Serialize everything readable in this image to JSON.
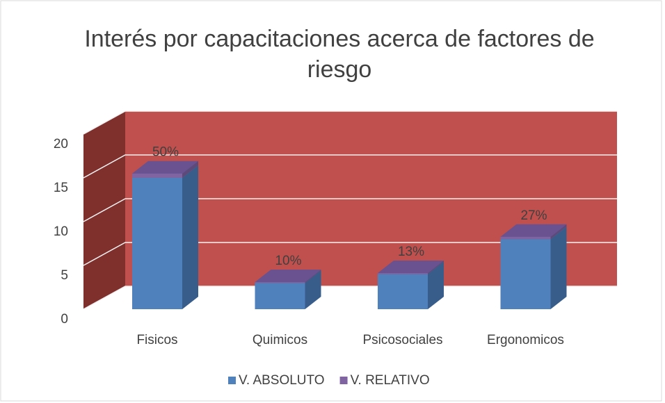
{
  "chart_data": {
    "type": "bar3d_stacked",
    "title": "Interés por capacitaciones acerca de factores de riesgo",
    "categories": [
      "Fisicos",
      "Quimicos",
      "Psicosociales",
      "Ergonomicos"
    ],
    "series": [
      {
        "name": "V. ABSOLUTO",
        "color": "#4f81bd",
        "values": [
          15,
          3,
          4,
          8
        ]
      },
      {
        "name": "V. RELATIVO",
        "color": "#8064a2",
        "values": [
          0.5,
          0.1,
          0.13,
          0.27
        ],
        "value_labels": [
          "50%",
          "10%",
          "13%",
          "27%"
        ]
      }
    ],
    "ylim": [
      0,
      20
    ],
    "yticks": [
      0,
      5,
      10,
      15,
      20
    ],
    "grid": true,
    "legend": "bottom"
  }
}
